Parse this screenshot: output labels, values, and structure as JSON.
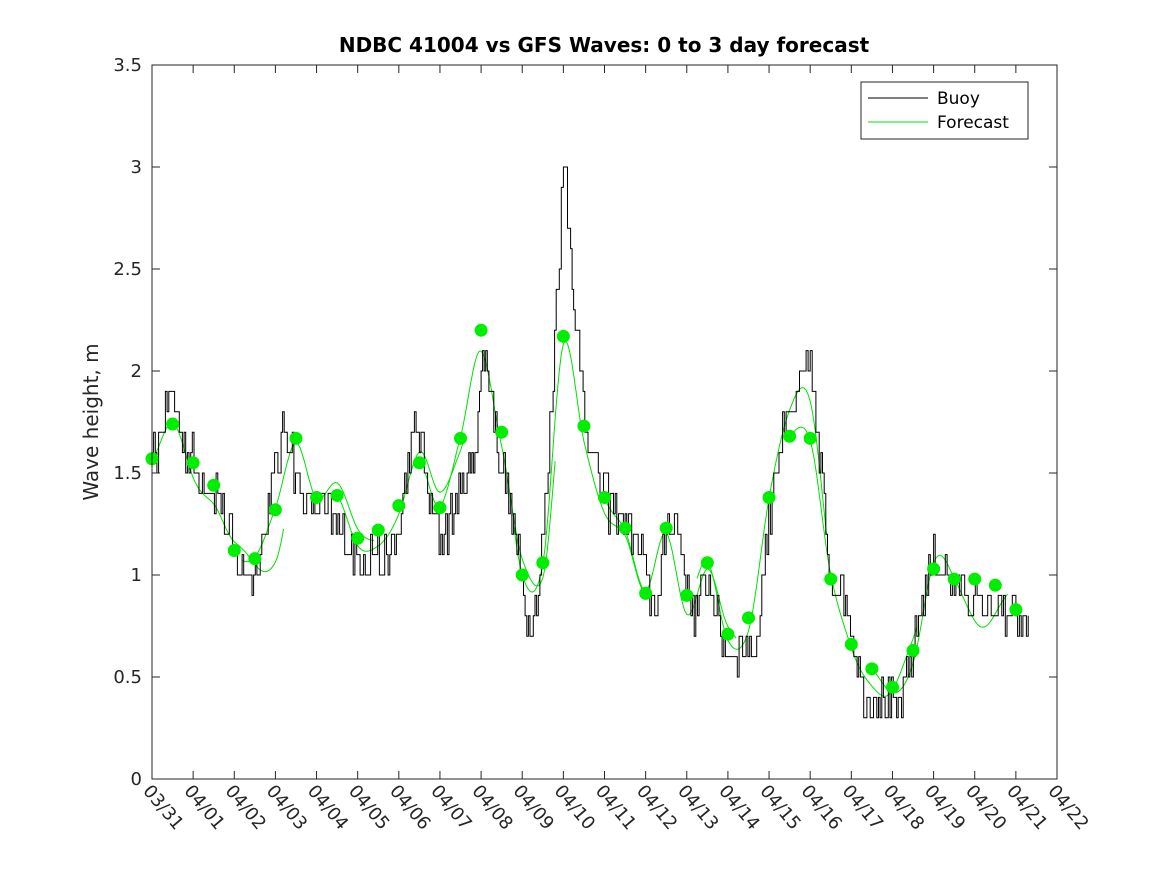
{
  "chart_data": {
    "type": "line",
    "title": "NDBC 41004 vs GFS Waves: 0 to 3 day forecast",
    "xlabel": "",
    "ylabel": "Wave height, m",
    "xlim": [
      0,
      22
    ],
    "ylim": [
      0,
      3.5
    ],
    "yticks": [
      0,
      0.5,
      1,
      1.5,
      2,
      2.5,
      3,
      3.5
    ],
    "ytick_labels": [
      "0",
      "0.5",
      "1",
      "1.5",
      "2",
      "2.5",
      "3",
      "3.5"
    ],
    "xtick_labels": [
      "03/31",
      "04/01",
      "04/02",
      "04/03",
      "04/04",
      "04/05",
      "04/06",
      "04/07",
      "04/08",
      "04/09",
      "04/10",
      "04/11",
      "04/12",
      "04/13",
      "04/14",
      "04/15",
      "04/16",
      "04/17",
      "04/18",
      "04/19",
      "04/20",
      "04/21",
      "04/22"
    ],
    "x_unit": "days since 03/31 00:00",
    "legend": {
      "position": "top-right",
      "entries": [
        {
          "label": "Buoy",
          "color": "#000000"
        },
        {
          "label": "Forecast",
          "color": "#00e000"
        }
      ]
    },
    "colors": {
      "buoy": "#000000",
      "forecast": "#00e000",
      "dots": "#00ee00",
      "axis": "#262626"
    },
    "buoy_keypoints": {
      "x": [
        0,
        0.2,
        0.45,
        0.55,
        0.7,
        0.9,
        1.1,
        1.35,
        1.6,
        1.8,
        2.0,
        2.15,
        2.35,
        2.55,
        2.75,
        2.9,
        3.1,
        3.25,
        3.45,
        3.6,
        3.8,
        4.0,
        4.2,
        4.4,
        4.6,
        4.85,
        5.1,
        5.4,
        5.7,
        5.9,
        6.1,
        6.3,
        6.5,
        6.7,
        6.9,
        7.1,
        7.3,
        7.5,
        7.7,
        7.85,
        8.0,
        8.15,
        8.35,
        8.55,
        8.75,
        8.95,
        9.15,
        9.35,
        9.55,
        9.75,
        9.9,
        10.0,
        10.1,
        10.25,
        10.4,
        10.6,
        10.85,
        11.1,
        11.3,
        11.5,
        11.7,
        11.9,
        12.1,
        12.3,
        12.5,
        12.7,
        12.9,
        13.1,
        13.3,
        13.5,
        13.7,
        13.9,
        14.1,
        14.4,
        14.7,
        14.95,
        15.2,
        15.5,
        15.7,
        15.9,
        16.0,
        16.1,
        16.3,
        16.5,
        16.7,
        16.9,
        17.1,
        17.3,
        17.5,
        17.7,
        17.9,
        18.1,
        18.3,
        18.55,
        18.8,
        19.0,
        19.2,
        19.5,
        19.8,
        20.1,
        20.4,
        20.7,
        21.0,
        21.3
      ],
      "y": [
        1.55,
        1.7,
        1.9,
        1.85,
        1.7,
        1.6,
        1.5,
        1.45,
        1.4,
        1.25,
        1.1,
        1.05,
        1.0,
        1.1,
        1.2,
        1.45,
        1.6,
        1.75,
        1.55,
        1.4,
        1.35,
        1.35,
        1.3,
        1.25,
        1.2,
        1.15,
        1.1,
        1.1,
        1.05,
        1.15,
        1.35,
        1.6,
        1.7,
        1.4,
        1.25,
        1.2,
        1.3,
        1.4,
        1.5,
        1.6,
        2.0,
        2.0,
        1.7,
        1.5,
        1.3,
        1.0,
        0.8,
        0.9,
        1.3,
        2.0,
        2.6,
        3.0,
        2.8,
        2.4,
        2.0,
        1.7,
        1.5,
        1.35,
        1.3,
        1.25,
        1.2,
        1.1,
        0.9,
        0.85,
        1.2,
        1.25,
        1.1,
        0.85,
        0.9,
        1.0,
        0.85,
        0.65,
        0.62,
        0.65,
        0.7,
        1.2,
        1.6,
        1.75,
        1.85,
        2.0,
        2.05,
        1.8,
        1.4,
        1.0,
        0.95,
        0.85,
        0.6,
        0.45,
        0.4,
        0.4,
        0.38,
        0.32,
        0.45,
        0.7,
        0.95,
        1.05,
        1.05,
        0.95,
        0.9,
        0.85,
        0.85,
        0.8,
        0.75,
        0.72
      ]
    },
    "forecast_dots": {
      "x": [
        0,
        0.5,
        1.0,
        1.5,
        2.0,
        2.5,
        3.0,
        3.5,
        4.0,
        4.5,
        5.0,
        5.5,
        6.0,
        6.5,
        7.0,
        7.5,
        8.0,
        8.5,
        9.0,
        9.5,
        10.0,
        10.5,
        11.0,
        11.5,
        12.0,
        12.5,
        13.0,
        13.5,
        14.0,
        14.5,
        15.0,
        15.5,
        16.0,
        16.5,
        17.0,
        17.5,
        18.0,
        18.5,
        19.0,
        19.5,
        20.0,
        20.5,
        21.0
      ],
      "y": [
        1.57,
        1.74,
        1.55,
        1.44,
        1.12,
        1.08,
        1.32,
        1.67,
        1.38,
        1.39,
        1.18,
        1.22,
        1.34,
        1.55,
        1.33,
        1.67,
        2.2,
        1.7,
        1.0,
        1.06,
        2.17,
        1.73,
        1.38,
        1.23,
        0.91,
        1.23,
        0.9,
        1.06,
        0.71,
        0.79,
        1.38,
        1.68,
        1.67,
        0.98,
        0.66,
        0.54,
        0.45,
        0.63,
        1.03,
        0.98,
        0.98,
        0.95,
        0.83
      ]
    }
  }
}
